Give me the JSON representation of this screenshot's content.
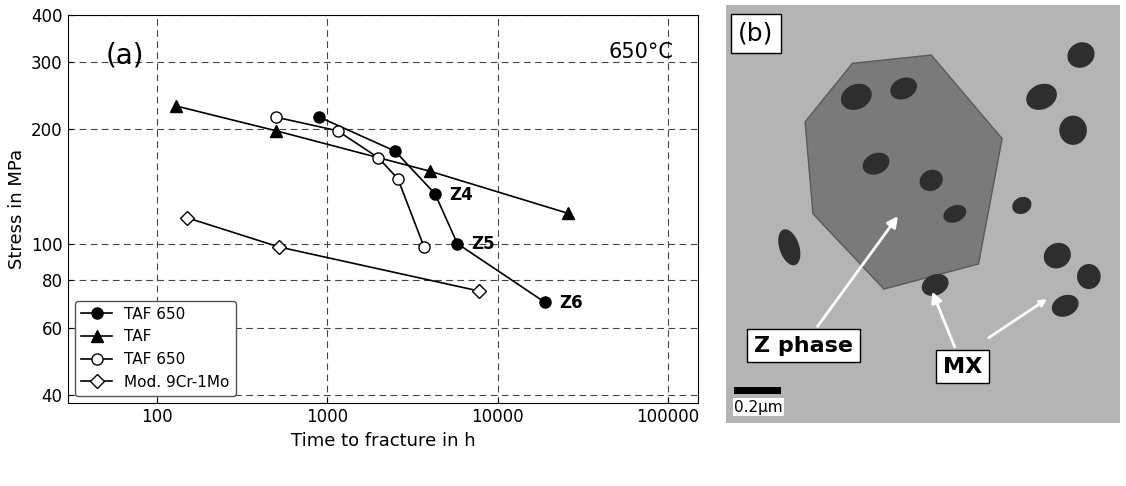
{
  "chart_data": {
    "type": "scatter",
    "panel_label": "(a)",
    "temperature_label": "650°C",
    "x_label": "Time to fracture in h",
    "y_label": "Stress in MPa",
    "log": true,
    "grid": true,
    "legend": "lower left",
    "xlim": [
      30,
      150000
    ],
    "xticks": [
      100,
      1000,
      10000,
      100000
    ],
    "ylim": [
      38,
      400
    ],
    "yticks": [
      40,
      60,
      80,
      100,
      200,
      300,
      400
    ],
    "series": [
      {
        "name": "TAF 650",
        "color": "#000000",
        "marker": "filled_circle",
        "line_style": "solid",
        "x": [
          900,
          2500,
          4300,
          5800,
          19000
        ],
        "values": [
          215,
          175,
          135,
          100,
          70
        ]
      },
      {
        "name": "TAF",
        "color": "#000000",
        "marker": "filled_triangle",
        "line_style": "solid",
        "x": [
          130,
          500,
          4000,
          26000
        ],
        "values": [
          230,
          198,
          155,
          120
        ]
      },
      {
        "name": "TAF 650",
        "color": "#000000",
        "marker": "open_circle",
        "line_style": "solid",
        "x": [
          500,
          1150,
          2000,
          2600,
          3700
        ],
        "values": [
          215,
          198,
          168,
          148,
          98
        ]
      },
      {
        "name": "Mod. 9Cr-1Mo",
        "color": "#000000",
        "marker": "open_diamond",
        "line_style": "solid",
        "x": [
          150,
          520,
          7800
        ],
        "values": [
          117,
          98,
          75
        ]
      }
    ],
    "annotations": [
      {
        "text": "Z4",
        "x": 4300,
        "y": 135
      },
      {
        "text": "Z5",
        "x": 5800,
        "y": 100
      },
      {
        "text": "Z6",
        "x": 19000,
        "y": 70
      }
    ]
  },
  "micrograph": {
    "panel_label": "(b)",
    "phase_labels": [
      "Z phase",
      "MX"
    ],
    "scale_bar": "0.2μm"
  }
}
